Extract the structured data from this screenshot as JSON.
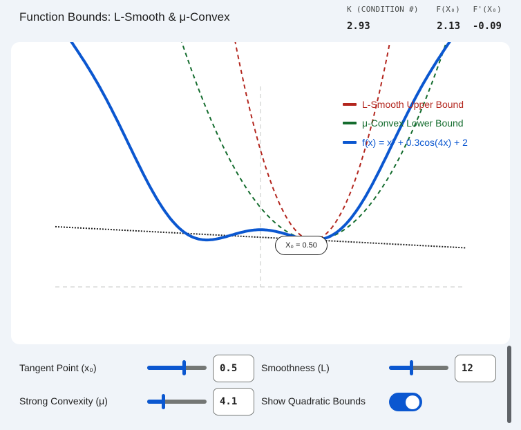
{
  "header": {
    "title": "Function Bounds: L-Smooth & μ-Convex",
    "metrics": [
      {
        "label": "K (CONDITION #)",
        "value": "2.93"
      },
      {
        "label": "F(X₀)",
        "value": "2.13"
      },
      {
        "label": "F'(X₀)",
        "value": "-0.09"
      }
    ]
  },
  "chart_data": {
    "type": "line",
    "legend_position": "top-right",
    "series": [
      {
        "name": "L-Smooth Upper Bound",
        "color": "#b3261e",
        "style": "dashed"
      },
      {
        "name": "μ-Convex Lower Bound",
        "color": "#146c2e",
        "style": "dashed"
      },
      {
        "name": "f(x) = x² + 0.3cos(4x) + 2",
        "color": "#0b57d0",
        "style": "solid"
      }
    ],
    "tangent_line": {
      "color": "#1f1f1f",
      "style": "dotted"
    },
    "marker_label": "X₀ = 0.50",
    "params": {
      "x0": 0.5,
      "L": 12,
      "mu": 4.1
    }
  },
  "controls": {
    "tangent_point": {
      "label": "Tangent Point (x₀)",
      "value": "0.5",
      "fill": 0.62
    },
    "smoothness": {
      "label": "Smoothness (L)",
      "value": "12",
      "fill": 0.38
    },
    "strong_convexity": {
      "label": "Strong Convexity (μ)",
      "value": "4.1",
      "fill": 0.27
    },
    "show_bounds": {
      "label": "Show Quadratic Bounds",
      "checked": true
    }
  }
}
